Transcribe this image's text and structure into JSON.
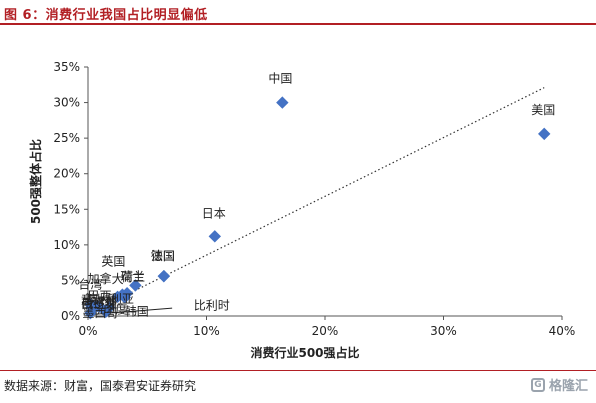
{
  "header": {
    "title": "图 6：消费行业我国占比明显偏低"
  },
  "footer": {
    "source": "数据来源：财富，国泰君安证券研究",
    "watermark": "格隆汇",
    "watermark_icon": "G"
  },
  "chart_data": {
    "type": "scatter",
    "xlabel": "消费行业500强占比",
    "ylabel": "500强整体占比",
    "xlim": [
      0,
      0.4
    ],
    "ylim": [
      0,
      0.35
    ],
    "x_ticks": [
      0,
      0.1,
      0.2,
      0.3,
      0.4
    ],
    "x_tick_labels": [
      "0%",
      "10%",
      "20%",
      "30%",
      "40%"
    ],
    "y_ticks": [
      0,
      0.05,
      0.1,
      0.15,
      0.2,
      0.25,
      0.3,
      0.35
    ],
    "y_tick_labels": [
      "0%",
      "5%",
      "10%",
      "15%",
      "20%",
      "25%",
      "30%",
      "35%"
    ],
    "marker_color": "#4472c4",
    "trendline": {
      "style": "dotted",
      "from": [
        0,
        0.003
      ],
      "to": [
        0.385,
        0.321
      ]
    },
    "points": [
      {
        "label": "中国",
        "x": 0.164,
        "y": 0.3
      },
      {
        "label": "美国",
        "x": 0.385,
        "y": 0.256
      },
      {
        "label": "日本",
        "x": 0.107,
        "y": 0.112
      },
      {
        "label": "法国",
        "x": 0.064,
        "y": 0.056
      },
      {
        "label": "德国",
        "x": 0.064,
        "y": 0.056
      },
      {
        "label": "英国",
        "x": 0.04,
        "y": 0.043
      },
      {
        "label": "韩国",
        "x": 0.031,
        "y": 0.026
      },
      {
        "label": "加拿大",
        "x": 0.025,
        "y": 0.027
      },
      {
        "label": "荷兰",
        "x": 0.033,
        "y": 0.032
      },
      {
        "label": "瑞士",
        "x": 0.029,
        "y": 0.03
      },
      {
        "label": "印度",
        "x": 0.018,
        "y": 0.012
      },
      {
        "label": "比利时",
        "x": 0.015,
        "y": 0.006
      },
      {
        "label": "澳大利亚",
        "x": 0.01,
        "y": 0.013
      },
      {
        "label": "巴西",
        "x": 0.008,
        "y": 0.014
      },
      {
        "label": "西班牙",
        "x": 0.006,
        "y": 0.014
      },
      {
        "label": "意大利",
        "x": 0.004,
        "y": 0.014
      },
      {
        "label": "俄罗斯",
        "x": 0.003,
        "y": 0.012
      },
      {
        "label": "墨西哥",
        "x": 0.002,
        "y": 0.004
      },
      {
        "label": "台湾",
        "x": 0.002,
        "y": 0.016
      }
    ]
  }
}
